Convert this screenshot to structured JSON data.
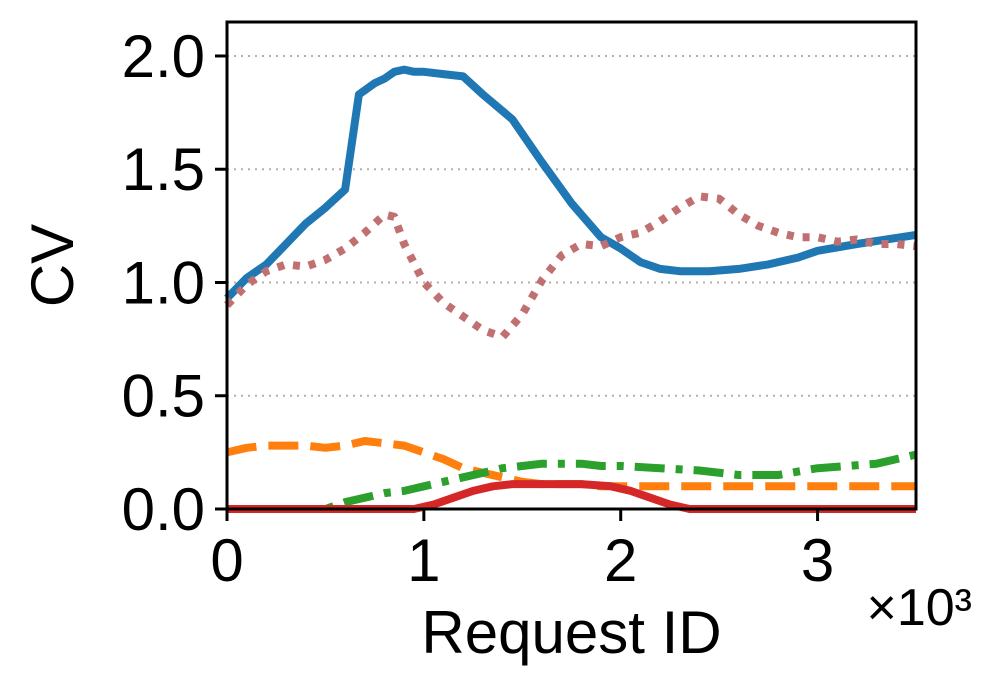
{
  "chart_data": {
    "type": "line",
    "xlabel": "Request ID",
    "ylabel": "CV",
    "x_offset_label": "×10³",
    "xlim": [
      0,
      3.5
    ],
    "ylim": [
      0,
      2.15
    ],
    "x_ticks": [
      0,
      1,
      2,
      3
    ],
    "x_tick_labels": [
      "0",
      "1",
      "2",
      "3"
    ],
    "y_ticks": [
      0,
      0.5,
      1.0,
      1.5,
      2.0
    ],
    "y_tick_labels": [
      "0.0",
      "0.5",
      "1.0",
      "1.5",
      "2.0"
    ],
    "grid": "horizontal dotted",
    "series": [
      {
        "color": "#1f77b4",
        "dash": "solid",
        "x": [
          0,
          0.1,
          0.2,
          0.3,
          0.4,
          0.5,
          0.6,
          0.67,
          0.75,
          0.8,
          0.85,
          0.9,
          0.95,
          1.0,
          1.1,
          1.2,
          1.3,
          1.45,
          1.6,
          1.75,
          1.9,
          2.0,
          2.1,
          2.2,
          2.3,
          2.45,
          2.6,
          2.75,
          2.9,
          3.0,
          3.2,
          3.5
        ],
        "y": [
          0.93,
          1.02,
          1.08,
          1.17,
          1.26,
          1.33,
          1.41,
          1.83,
          1.88,
          1.9,
          1.93,
          1.94,
          1.93,
          1.93,
          1.92,
          1.91,
          1.83,
          1.72,
          1.53,
          1.35,
          1.2,
          1.15,
          1.09,
          1.06,
          1.05,
          1.05,
          1.06,
          1.08,
          1.11,
          1.14,
          1.17,
          1.21
        ]
      },
      {
        "color": "#c07070",
        "dash": "dotted",
        "x": [
          0,
          0.1,
          0.2,
          0.3,
          0.4,
          0.5,
          0.6,
          0.7,
          0.8,
          0.85,
          0.9,
          1.0,
          1.1,
          1.2,
          1.3,
          1.4,
          1.5,
          1.6,
          1.7,
          1.8,
          1.9,
          2.0,
          2.1,
          2.2,
          2.3,
          2.4,
          2.5,
          2.6,
          2.7,
          2.8,
          2.9,
          3.0,
          3.1,
          3.2,
          3.3,
          3.4,
          3.5
        ],
        "y": [
          0.9,
          0.99,
          1.05,
          1.08,
          1.07,
          1.1,
          1.15,
          1.22,
          1.3,
          1.29,
          1.17,
          1.0,
          0.91,
          0.85,
          0.79,
          0.76,
          0.86,
          1.01,
          1.12,
          1.17,
          1.16,
          1.2,
          1.22,
          1.27,
          1.33,
          1.38,
          1.37,
          1.3,
          1.25,
          1.22,
          1.2,
          1.2,
          1.18,
          1.19,
          1.17,
          1.17,
          1.16
        ]
      },
      {
        "color": "#ff7f0e",
        "dash": "dashed",
        "x": [
          0,
          0.1,
          0.2,
          0.3,
          0.4,
          0.5,
          0.6,
          0.7,
          0.8,
          0.9,
          1.0,
          1.1,
          1.2,
          1.3,
          1.4,
          1.5,
          1.6,
          1.7,
          1.8,
          1.9,
          2.0,
          2.2,
          2.5,
          3.0,
          3.5
        ],
        "y": [
          0.25,
          0.27,
          0.28,
          0.28,
          0.28,
          0.27,
          0.28,
          0.3,
          0.29,
          0.28,
          0.25,
          0.22,
          0.18,
          0.16,
          0.14,
          0.12,
          0.11,
          0.11,
          0.11,
          0.1,
          0.1,
          0.1,
          0.1,
          0.1,
          0.1
        ]
      },
      {
        "color": "#2ca02c",
        "dash": "dashdot",
        "x": [
          0,
          0.5,
          0.6,
          0.7,
          0.8,
          0.9,
          1.0,
          1.1,
          1.2,
          1.3,
          1.4,
          1.5,
          1.6,
          1.7,
          1.8,
          1.9,
          2.0,
          2.2,
          2.4,
          2.6,
          2.8,
          3.0,
          3.15,
          3.3,
          3.5
        ],
        "y": [
          0.0,
          0.0,
          0.03,
          0.05,
          0.07,
          0.08,
          0.1,
          0.12,
          0.14,
          0.16,
          0.18,
          0.19,
          0.2,
          0.2,
          0.2,
          0.19,
          0.19,
          0.18,
          0.17,
          0.15,
          0.15,
          0.18,
          0.19,
          0.2,
          0.24
        ]
      },
      {
        "color": "#d62728",
        "dash": "solid",
        "x": [
          0,
          0.95,
          1.05,
          1.15,
          1.25,
          1.35,
          1.45,
          1.6,
          1.8,
          1.95,
          2.05,
          2.15,
          2.25,
          2.35,
          3.5
        ],
        "y": [
          0.0,
          0.0,
          0.02,
          0.05,
          0.08,
          0.1,
          0.11,
          0.11,
          0.11,
          0.1,
          0.08,
          0.05,
          0.02,
          0.0,
          0.0
        ]
      }
    ]
  }
}
